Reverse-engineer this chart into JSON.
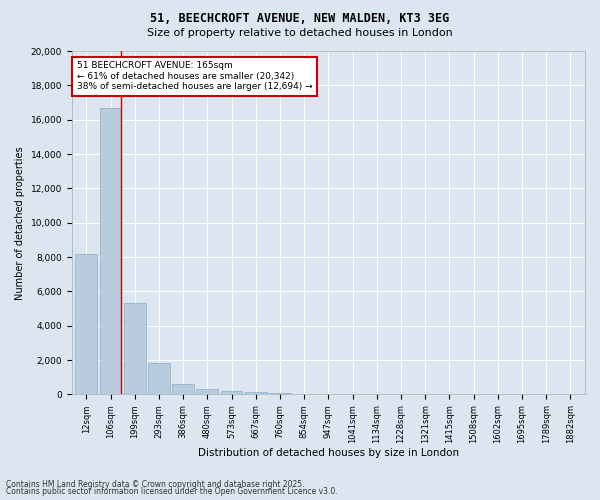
{
  "title1": "51, BEECHCROFT AVENUE, NEW MALDEN, KT3 3EG",
  "title2": "Size of property relative to detached houses in London",
  "xlabel": "Distribution of detached houses by size in London",
  "ylabel": "Number of detached properties",
  "bar_labels": [
    "12sqm",
    "106sqm",
    "199sqm",
    "293sqm",
    "386sqm",
    "480sqm",
    "573sqm",
    "667sqm",
    "760sqm",
    "854sqm",
    "947sqm",
    "1041sqm",
    "1134sqm",
    "1228sqm",
    "1321sqm",
    "1415sqm",
    "1508sqm",
    "1602sqm",
    "1695sqm",
    "1789sqm",
    "1882sqm"
  ],
  "bar_values": [
    8200,
    16700,
    5350,
    1850,
    620,
    330,
    200,
    130,
    80,
    0,
    0,
    0,
    0,
    0,
    0,
    0,
    0,
    0,
    0,
    0,
    0
  ],
  "bar_color": "#b8ccdd",
  "bar_edge_color": "#8aaec8",
  "ylim": [
    0,
    20000
  ],
  "yticks": [
    0,
    2000,
    4000,
    6000,
    8000,
    10000,
    12000,
    14000,
    16000,
    18000,
    20000
  ],
  "vline_color": "#cc0000",
  "annotation_title": "51 BEECHCROFT AVENUE: 165sqm",
  "annotation_line1": "← 61% of detached houses are smaller (20,342)",
  "annotation_line2": "38% of semi-detached houses are larger (12,694) →",
  "annotation_box_color": "#ffffff",
  "annotation_box_edge": "#cc0000",
  "footer1": "Contains HM Land Registry data © Crown copyright and database right 2025.",
  "footer2": "Contains public sector information licensed under the Open Government Licence v3.0.",
  "bg_color": "#dce6f0",
  "plot_bg_color": "#dce6f0"
}
